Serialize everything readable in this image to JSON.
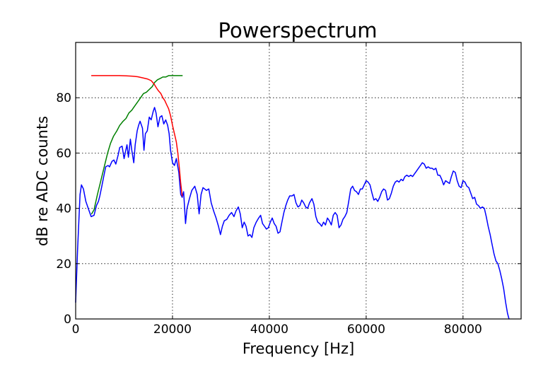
{
  "chart_data": {
    "type": "line",
    "title": "Powerspectrum",
    "xlabel": "Frequency [Hz]",
    "ylabel": "dB re ADC counts",
    "xlim": [
      0,
      92000
    ],
    "ylim": [
      0,
      100
    ],
    "xticks": [
      0,
      20000,
      40000,
      60000,
      80000
    ],
    "yticks": [
      0,
      20,
      40,
      60,
      80
    ],
    "xtick_labels": [
      "0",
      "20000",
      "40000",
      "60000",
      "80000"
    ],
    "ytick_labels": [
      "0",
      "20",
      "40",
      "60",
      "80"
    ],
    "grid": true,
    "legend": "none",
    "series": [
      {
        "color": "#0000ff",
        "points": [
          [
            0,
            6
          ],
          [
            400,
            25
          ],
          [
            900,
            45
          ],
          [
            1200,
            48.5
          ],
          [
            1600,
            47
          ],
          [
            2100,
            42.5
          ],
          [
            2700,
            39.5
          ],
          [
            3200,
            37
          ],
          [
            3800,
            37.5
          ],
          [
            4300,
            41
          ],
          [
            4700,
            42.5
          ],
          [
            5000,
            44.5
          ],
          [
            5400,
            48
          ],
          [
            5800,
            51.5
          ],
          [
            6200,
            55
          ],
          [
            6700,
            55.5
          ],
          [
            7000,
            55
          ],
          [
            7500,
            57
          ],
          [
            7900,
            57.5
          ],
          [
            8300,
            56
          ],
          [
            8800,
            59.5
          ],
          [
            9100,
            62
          ],
          [
            9600,
            62.5
          ],
          [
            10000,
            58
          ],
          [
            10300,
            60.5
          ],
          [
            10600,
            63
          ],
          [
            10900,
            58.5
          ],
          [
            11300,
            65
          ],
          [
            11600,
            61
          ],
          [
            12000,
            56.5
          ],
          [
            12300,
            63
          ],
          [
            12700,
            68
          ],
          [
            13000,
            70
          ],
          [
            13300,
            71.5
          ],
          [
            13800,
            69
          ],
          [
            14100,
            61
          ],
          [
            14400,
            67
          ],
          [
            14800,
            68
          ],
          [
            15200,
            73
          ],
          [
            15600,
            72
          ],
          [
            16000,
            75
          ],
          [
            16300,
            76.5
          ],
          [
            16600,
            74.5
          ],
          [
            17000,
            69.5
          ],
          [
            17400,
            73
          ],
          [
            17800,
            73.5
          ],
          [
            18200,
            70.5
          ],
          [
            18600,
            72
          ],
          [
            19000,
            70
          ],
          [
            19300,
            67
          ],
          [
            19600,
            61
          ],
          [
            20000,
            56.5
          ],
          [
            20400,
            55.5
          ],
          [
            20800,
            58
          ],
          [
            21300,
            53
          ],
          [
            21700,
            45
          ],
          [
            22000,
            44
          ],
          [
            22300,
            46
          ],
          [
            22700,
            34.5
          ],
          [
            23000,
            40
          ],
          [
            23500,
            43.5
          ],
          [
            24000,
            46.5
          ],
          [
            24600,
            48
          ],
          [
            25100,
            45
          ],
          [
            25500,
            38
          ],
          [
            25900,
            45
          ],
          [
            26300,
            47.5
          ],
          [
            27000,
            46.5
          ],
          [
            27500,
            47
          ],
          [
            28000,
            42
          ],
          [
            28500,
            39
          ],
          [
            29000,
            36.5
          ],
          [
            29500,
            33.5
          ],
          [
            29900,
            30.5
          ],
          [
            30300,
            33.5
          ],
          [
            30700,
            35.5
          ],
          [
            31200,
            36
          ],
          [
            31700,
            37.5
          ],
          [
            32200,
            38.5
          ],
          [
            32700,
            37
          ],
          [
            33100,
            39
          ],
          [
            33600,
            40.5
          ],
          [
            34000,
            38
          ],
          [
            34400,
            33
          ],
          [
            34800,
            35
          ],
          [
            35200,
            33.5
          ],
          [
            35600,
            30
          ],
          [
            36000,
            30.5
          ],
          [
            36400,
            29.5
          ],
          [
            36800,
            33
          ],
          [
            37300,
            35
          ],
          [
            37800,
            36.5
          ],
          [
            38200,
            37.5
          ],
          [
            38600,
            34.5
          ],
          [
            39000,
            33.5
          ],
          [
            39400,
            32.5
          ],
          [
            39800,
            33
          ],
          [
            40200,
            35
          ],
          [
            40600,
            36.5
          ],
          [
            41000,
            34.5
          ],
          [
            41400,
            33.5
          ],
          [
            41800,
            31
          ],
          [
            42200,
            31.5
          ],
          [
            42600,
            35
          ],
          [
            43000,
            38.5
          ],
          [
            43400,
            41
          ],
          [
            43800,
            43
          ],
          [
            44200,
            44.5
          ],
          [
            44700,
            44.5
          ],
          [
            45100,
            45
          ],
          [
            45500,
            42
          ],
          [
            45900,
            40.5
          ],
          [
            46300,
            41
          ],
          [
            46700,
            43
          ],
          [
            47100,
            42
          ],
          [
            47500,
            40.5
          ],
          [
            47900,
            40
          ],
          [
            48300,
            42
          ],
          [
            48800,
            43.5
          ],
          [
            49200,
            41.5
          ],
          [
            49600,
            37
          ],
          [
            50000,
            35
          ],
          [
            50400,
            34.5
          ],
          [
            50800,
            33.5
          ],
          [
            51200,
            35
          ],
          [
            51600,
            34
          ],
          [
            52000,
            36.5
          ],
          [
            52400,
            35.5
          ],
          [
            52800,
            34
          ],
          [
            53200,
            37.5
          ],
          [
            53600,
            38.5
          ],
          [
            54000,
            37.5
          ],
          [
            54400,
            33
          ],
          [
            54800,
            34
          ],
          [
            55200,
            36
          ],
          [
            55600,
            37
          ],
          [
            56000,
            38.5
          ],
          [
            56400,
            42.5
          ],
          [
            56800,
            47
          ],
          [
            57200,
            48
          ],
          [
            57600,
            46.5
          ],
          [
            58000,
            46
          ],
          [
            58400,
            45
          ],
          [
            58800,
            47
          ],
          [
            59200,
            47
          ],
          [
            59600,
            48.5
          ],
          [
            60000,
            50
          ],
          [
            60400,
            49.5
          ],
          [
            60800,
            48.5
          ],
          [
            61200,
            45.5
          ],
          [
            61600,
            43
          ],
          [
            62000,
            43.5
          ],
          [
            62400,
            42.5
          ],
          [
            62800,
            44
          ],
          [
            63200,
            46
          ],
          [
            63600,
            47
          ],
          [
            64000,
            46.5
          ],
          [
            64400,
            43
          ],
          [
            64800,
            43.5
          ],
          [
            65200,
            45.5
          ],
          [
            65600,
            48
          ],
          [
            66000,
            49.5
          ],
          [
            66400,
            50
          ],
          [
            66800,
            49.5
          ],
          [
            67200,
            50.5
          ],
          [
            67600,
            50
          ],
          [
            68000,
            51.5
          ],
          [
            68400,
            52
          ],
          [
            68800,
            51.5
          ],
          [
            69200,
            52
          ],
          [
            69600,
            51.5
          ],
          [
            70000,
            52.5
          ],
          [
            70400,
            53.5
          ],
          [
            70800,
            54.5
          ],
          [
            71200,
            55.5
          ],
          [
            71600,
            56.5
          ],
          [
            72000,
            56
          ],
          [
            72400,
            54.5
          ],
          [
            72800,
            55
          ],
          [
            73200,
            54.5
          ],
          [
            73600,
            54.5
          ],
          [
            74000,
            54
          ],
          [
            74400,
            54.5
          ],
          [
            74800,
            52
          ],
          [
            75200,
            52
          ],
          [
            75600,
            50.5
          ],
          [
            76000,
            48.5
          ],
          [
            76400,
            50
          ],
          [
            76800,
            49.5
          ],
          [
            77200,
            49
          ],
          [
            77600,
            51.5
          ],
          [
            78000,
            53.5
          ],
          [
            78400,
            53
          ],
          [
            78800,
            50
          ],
          [
            79200,
            48
          ],
          [
            79600,
            47.5
          ],
          [
            80000,
            50
          ],
          [
            80400,
            49.5
          ],
          [
            80800,
            48
          ],
          [
            81200,
            47.5
          ],
          [
            81600,
            45.5
          ],
          [
            82000,
            43.5
          ],
          [
            82400,
            44
          ],
          [
            82800,
            41.5
          ],
          [
            83200,
            41
          ],
          [
            83600,
            40
          ],
          [
            84000,
            40.5
          ],
          [
            84400,
            40
          ],
          [
            84800,
            37
          ],
          [
            85200,
            33.5
          ],
          [
            85600,
            30.5
          ],
          [
            86000,
            27
          ],
          [
            86400,
            23.5
          ],
          [
            86800,
            21
          ],
          [
            87200,
            20
          ],
          [
            87600,
            17.5
          ],
          [
            88000,
            14.5
          ],
          [
            88400,
            11
          ],
          [
            88800,
            6
          ],
          [
            89200,
            2
          ],
          [
            89500,
            0
          ]
        ]
      },
      {
        "color": "#008000",
        "points": [
          [
            3300,
            38
          ],
          [
            3800,
            39.5
          ],
          [
            4500,
            45
          ],
          [
            5200,
            50
          ],
          [
            5900,
            55
          ],
          [
            6600,
            60
          ],
          [
            7200,
            63.5
          ],
          [
            7800,
            66
          ],
          [
            8500,
            68
          ],
          [
            9100,
            70
          ],
          [
            9800,
            71.5
          ],
          [
            10400,
            72.5
          ],
          [
            11000,
            74.5
          ],
          [
            11600,
            75.5
          ],
          [
            12200,
            77
          ],
          [
            12800,
            78.5
          ],
          [
            13400,
            80
          ],
          [
            14000,
            81.5
          ],
          [
            14600,
            82
          ],
          [
            15200,
            83
          ],
          [
            15800,
            84
          ],
          [
            16300,
            85.5
          ],
          [
            16900,
            86.5
          ],
          [
            17500,
            87
          ],
          [
            18000,
            87.5
          ],
          [
            18600,
            87.5
          ],
          [
            19200,
            88
          ],
          [
            19800,
            88
          ],
          [
            20400,
            88
          ],
          [
            21000,
            88
          ],
          [
            21700,
            88
          ],
          [
            22000,
            88
          ]
        ]
      },
      {
        "color": "#ff0000",
        "points": [
          [
            3300,
            88
          ],
          [
            4500,
            88
          ],
          [
            6000,
            88
          ],
          [
            7500,
            88
          ],
          [
            9000,
            88
          ],
          [
            10500,
            87.9
          ],
          [
            11800,
            87.8
          ],
          [
            12800,
            87.6
          ],
          [
            13800,
            87.2
          ],
          [
            14800,
            86.8
          ],
          [
            15600,
            86.2
          ],
          [
            16200,
            85
          ],
          [
            16700,
            83.5
          ],
          [
            17100,
            82.5
          ],
          [
            17600,
            81.5
          ],
          [
            18000,
            80
          ],
          [
            18400,
            79
          ],
          [
            18800,
            77.5
          ],
          [
            19200,
            76
          ],
          [
            19600,
            73.5
          ],
          [
            20000,
            70
          ],
          [
            20400,
            67
          ],
          [
            20800,
            64
          ],
          [
            21100,
            60
          ],
          [
            21400,
            55
          ],
          [
            21700,
            49
          ],
          [
            22000,
            44.5
          ]
        ]
      }
    ]
  }
}
